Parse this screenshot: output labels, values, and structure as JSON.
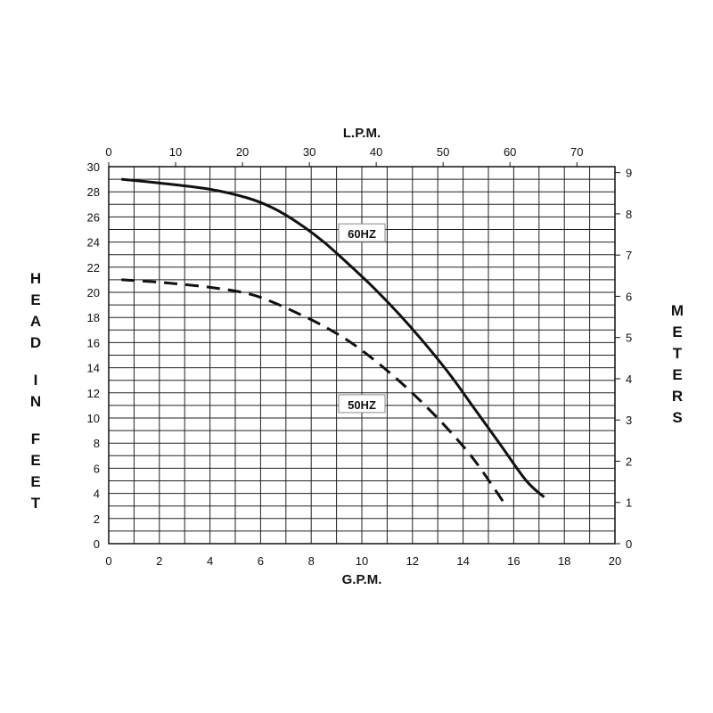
{
  "chart_data": {
    "type": "line",
    "xlabel": "G.P.M.",
    "ylabel": "HEAD IN FEET",
    "x2label": "L.P.M.",
    "y2label": "METERS",
    "xlim": [
      0,
      20
    ],
    "ylim": [
      0,
      30
    ],
    "x2lim": [
      0,
      75.7
    ],
    "y2lim": [
      0,
      9.144
    ],
    "grid": true,
    "x_ticks": [
      0,
      2,
      4,
      6,
      8,
      10,
      12,
      14,
      16,
      18,
      20
    ],
    "y_ticks": [
      0,
      2,
      4,
      6,
      8,
      10,
      12,
      14,
      16,
      18,
      20,
      22,
      24,
      26,
      28,
      30
    ],
    "x2_ticks": [
      0,
      10,
      20,
      30,
      40,
      50,
      60,
      70
    ],
    "y2_ticks": [
      0,
      1,
      2,
      3,
      4,
      5,
      6,
      7,
      8,
      9
    ],
    "series": [
      {
        "name": "60HZ",
        "style": "solid",
        "color": "#111111",
        "x": [
          0.5,
          2,
          4,
          5.5,
          6.5,
          7.5,
          8.5,
          9.5,
          10.5,
          11.5,
          12.5,
          13.5,
          14.5,
          15.5,
          16.5,
          17.2
        ],
        "y": [
          29,
          28.7,
          28.2,
          27.5,
          26.7,
          25.5,
          24,
          22.2,
          20.3,
          18.2,
          15.9,
          13.4,
          10.6,
          7.8,
          5.0,
          3.7
        ]
      },
      {
        "name": "50HZ",
        "style": "dashed",
        "color": "#111111",
        "x": [
          0.5,
          2,
          4,
          5.5,
          6.5,
          7.5,
          8.5,
          9.5,
          10.5,
          11.5,
          12.5,
          13.5,
          14.5,
          15.7
        ],
        "y": [
          21,
          20.8,
          20.4,
          19.9,
          19.2,
          18.3,
          17.3,
          16.1,
          14.6,
          12.9,
          11.0,
          8.9,
          6.5,
          3.0
        ]
      }
    ]
  }
}
